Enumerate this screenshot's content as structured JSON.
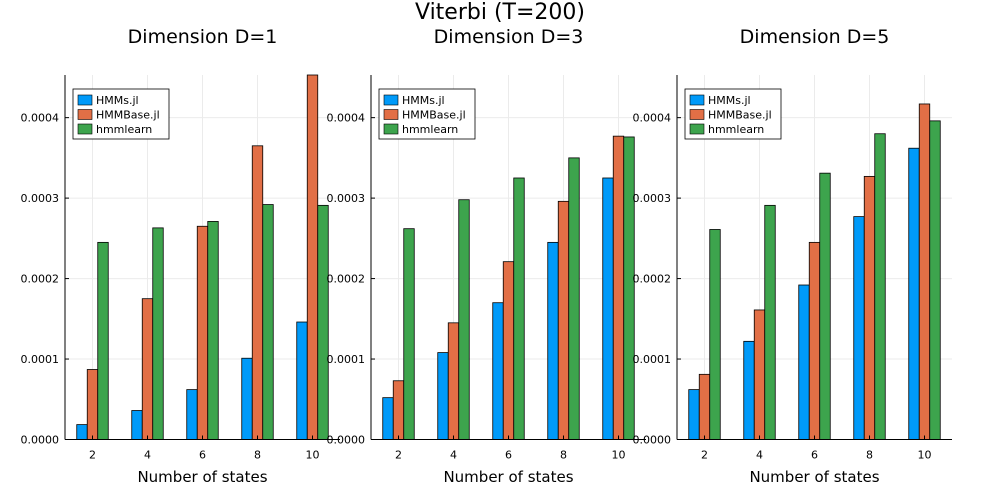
{
  "figure": {
    "title": "Viterbi (T=200)"
  },
  "colors": {
    "HMMs.jl": "#009af9",
    "HMMBase.jl": "#e26f46",
    "hmmlearn": "#3da44d",
    "grid": "#ebebeb",
    "axis": "#000000"
  },
  "chart_data": [
    {
      "type": "bar",
      "title": "Dimension D=1",
      "xlabel": "Number of states",
      "ylabel": "",
      "categories": [
        "2",
        "4",
        "6",
        "8",
        "10"
      ],
      "ylim": [
        0,
        0.000453
      ],
      "yticks": [
        "0.0000",
        "0.0001",
        "0.0002",
        "0.0003",
        "0.0004"
      ],
      "grid": true,
      "legend_position": "top-left",
      "series": [
        {
          "name": "HMMs.jl",
          "values": [
            1.85e-05,
            3.6e-05,
            6.2e-05,
            0.000101,
            0.000146
          ]
        },
        {
          "name": "HMMBase.jl",
          "values": [
            8.7e-05,
            0.000175,
            0.000265,
            0.000365,
            0.000453
          ]
        },
        {
          "name": "hmmlearn",
          "values": [
            0.000245,
            0.000263,
            0.000271,
            0.000292,
            0.000291
          ]
        }
      ]
    },
    {
      "type": "bar",
      "title": "Dimension D=3",
      "xlabel": "Number of states",
      "ylabel": "",
      "categories": [
        "2",
        "4",
        "6",
        "8",
        "10"
      ],
      "ylim": [
        0,
        0.000453
      ],
      "yticks": [
        "0.0000",
        "0.0001",
        "0.0002",
        "0.0003",
        "0.0004"
      ],
      "grid": true,
      "legend_position": "top-left",
      "series": [
        {
          "name": "HMMs.jl",
          "values": [
            5.2e-05,
            0.000108,
            0.00017,
            0.000245,
            0.000325
          ]
        },
        {
          "name": "HMMBase.jl",
          "values": [
            7.3e-05,
            0.000145,
            0.000221,
            0.000296,
            0.000377
          ]
        },
        {
          "name": "hmmlearn",
          "values": [
            0.000262,
            0.000298,
            0.000325,
            0.00035,
            0.000376
          ]
        }
      ]
    },
    {
      "type": "bar",
      "title": "Dimension D=5",
      "xlabel": "Number of states",
      "ylabel": "",
      "categories": [
        "2",
        "4",
        "6",
        "8",
        "10"
      ],
      "ylim": [
        0,
        0.000453
      ],
      "yticks": [
        "0.0000",
        "0.0001",
        "0.0002",
        "0.0003",
        "0.0004"
      ],
      "grid": true,
      "legend_position": "top-left",
      "series": [
        {
          "name": "HMMs.jl",
          "values": [
            6.2e-05,
            0.000122,
            0.000192,
            0.000277,
            0.000362
          ]
        },
        {
          "name": "HMMBase.jl",
          "values": [
            8.1e-05,
            0.000161,
            0.000245,
            0.000327,
            0.000417
          ]
        },
        {
          "name": "hmmlearn",
          "values": [
            0.000261,
            0.000291,
            0.000331,
            0.00038,
            0.000396
          ]
        }
      ]
    }
  ]
}
